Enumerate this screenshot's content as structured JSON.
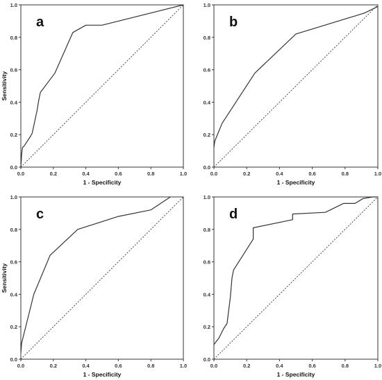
{
  "chart_data": [
    {
      "type": "line",
      "panel_label": "a",
      "xlabel": "1 - Specificity",
      "ylabel": "Sensitivity",
      "xlim": [
        0,
        1
      ],
      "ylim": [
        0,
        1
      ],
      "xticks": [
        "0.0",
        "0.2",
        "0.4",
        "0.6",
        "0.8",
        "1.0"
      ],
      "yticks": [
        "0.0",
        "0.2",
        "0.4",
        "0.6",
        "0.8",
        "1.0"
      ],
      "grid": false,
      "series": [
        {
          "x": [
            0,
            0.005,
            0.01,
            0.02,
            0.06,
            0.07,
            0.1,
            0.11,
            0.12,
            0.21,
            0.32,
            0.4,
            0.5,
            1.0
          ],
          "y": [
            0,
            0.08,
            0.12,
            0.13,
            0.19,
            0.21,
            0.35,
            0.41,
            0.46,
            0.58,
            0.83,
            0.875,
            0.875,
            1.0
          ],
          "color": "#333333",
          "style": "solid"
        },
        {
          "x": [
            0,
            1
          ],
          "y": [
            0,
            1
          ],
          "color": "#333333",
          "style": "dotted"
        }
      ]
    },
    {
      "type": "line",
      "panel_label": "b",
      "xlabel": "1 - Specificity",
      "ylabel": "",
      "xlim": [
        0,
        1
      ],
      "ylim": [
        0,
        1
      ],
      "xticks": [
        "0.0",
        "0.2",
        "0.4",
        "0.6",
        "0.8",
        "1.0"
      ],
      "yticks": [
        "0.0",
        "0.2",
        "0.4",
        "0.6",
        "0.8",
        "1.0"
      ],
      "grid": false,
      "series": [
        {
          "x": [
            0,
            0.005,
            0.05,
            0.25,
            0.5,
            0.92,
            1.0
          ],
          "y": [
            0.12,
            0.16,
            0.27,
            0.58,
            0.82,
            0.95,
            0.99
          ],
          "color": "#333333",
          "style": "solid"
        },
        {
          "x": [
            0,
            1
          ],
          "y": [
            0,
            1
          ],
          "color": "#333333",
          "style": "dotted"
        }
      ]
    },
    {
      "type": "line",
      "panel_label": "c",
      "xlabel": "1 - Specificity",
      "ylabel": "Sensitivity",
      "xlim": [
        0,
        1
      ],
      "ylim": [
        0,
        1
      ],
      "xticks": [
        "0.0",
        "0.2",
        "0.4",
        "0.6",
        "0.8",
        "1.0"
      ],
      "yticks": [
        "0.0",
        "0.2",
        "0.4",
        "0.6",
        "0.8",
        "1.0"
      ],
      "grid": false,
      "series": [
        {
          "x": [
            0,
            0.005,
            0.08,
            0.18,
            0.35,
            0.6,
            0.8,
            0.92
          ],
          "y": [
            0.04,
            0.1,
            0.4,
            0.64,
            0.8,
            0.88,
            0.92,
            1.0
          ],
          "color": "#333333",
          "style": "solid"
        },
        {
          "x": [
            0,
            1
          ],
          "y": [
            0,
            1
          ],
          "color": "#333333",
          "style": "dotted"
        }
      ]
    },
    {
      "type": "line",
      "panel_label": "d",
      "xlabel": "1 - Specificity",
      "ylabel": "",
      "xlim": [
        0,
        1
      ],
      "ylim": [
        0,
        1
      ],
      "xticks": [
        "0.0",
        "0.2",
        "0.4",
        "0.6",
        "0.8",
        "1.0"
      ],
      "yticks": [
        "0.0",
        "0.2",
        "0.4",
        "0.6",
        "0.8",
        "1.0"
      ],
      "grid": false,
      "series": [
        {
          "x": [
            0,
            0.03,
            0.06,
            0.08,
            0.1,
            0.11,
            0.12,
            0.24,
            0.24,
            0.48,
            0.48,
            0.68,
            0.79,
            0.82,
            0.86,
            0.91,
            0.97,
            1.0
          ],
          "y": [
            0.09,
            0.13,
            0.19,
            0.22,
            0.38,
            0.5,
            0.55,
            0.74,
            0.81,
            0.86,
            0.895,
            0.905,
            0.96,
            0.96,
            0.96,
            0.99,
            1.0,
            1.0
          ],
          "color": "#333333",
          "style": "solid"
        },
        {
          "x": [
            0,
            1
          ],
          "y": [
            0,
            1
          ],
          "color": "#333333",
          "style": "dotted"
        }
      ]
    }
  ]
}
